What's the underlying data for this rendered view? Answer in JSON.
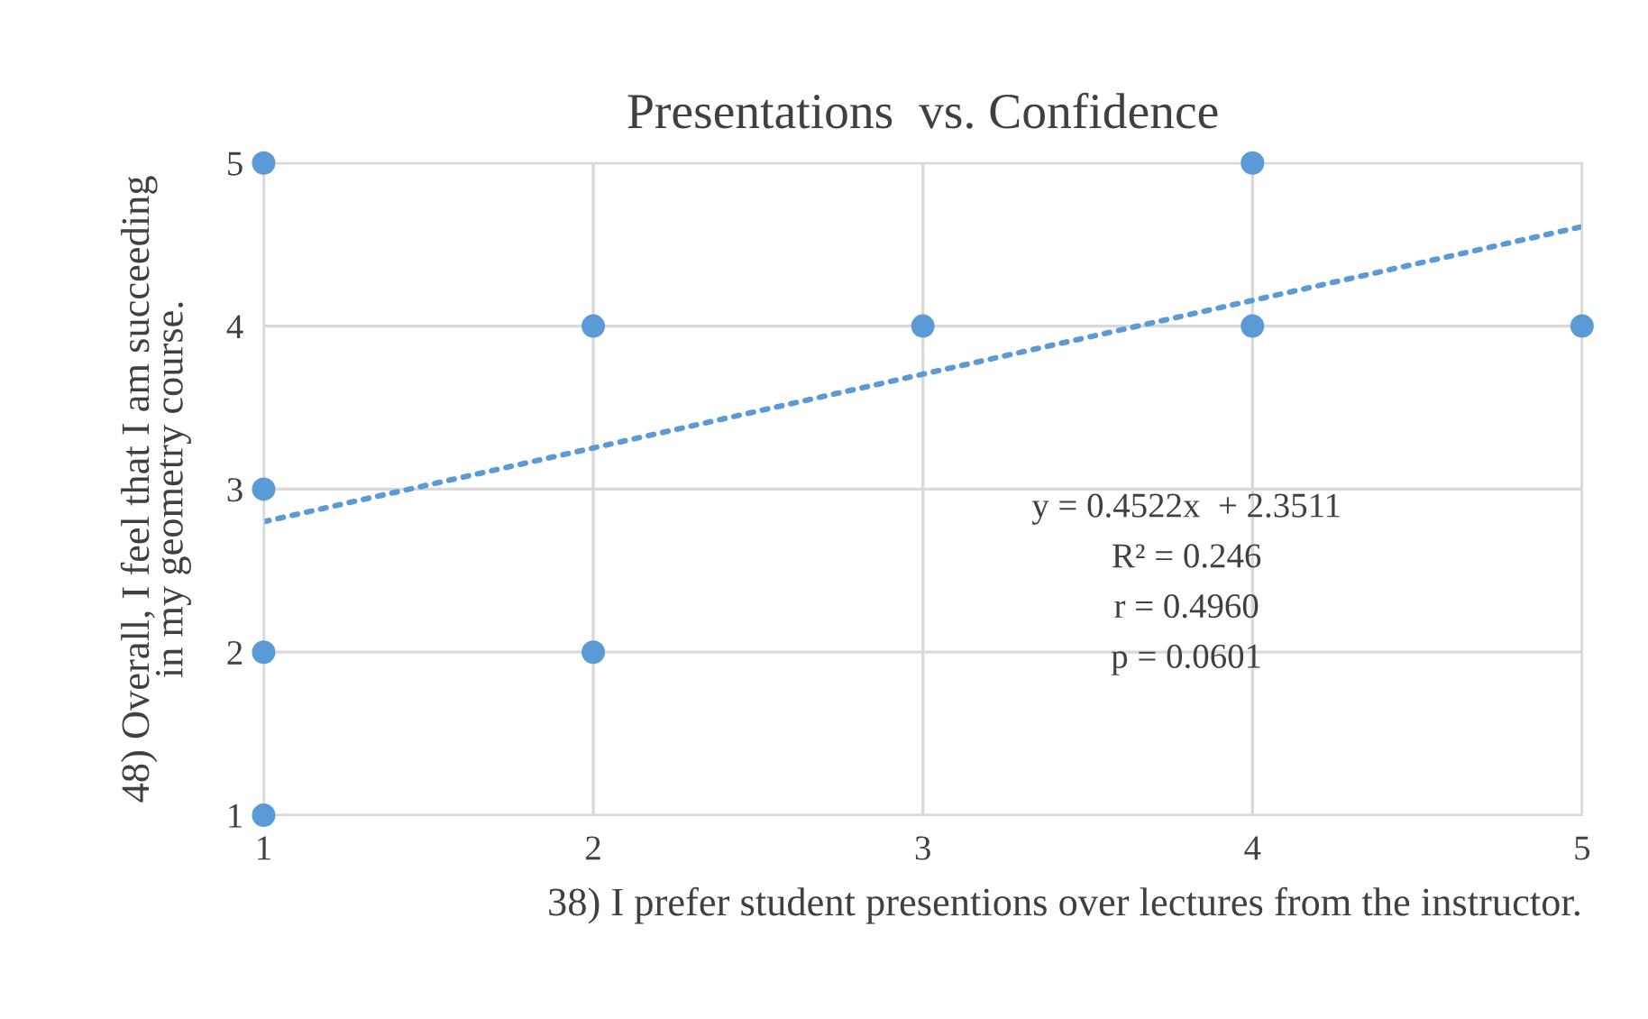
{
  "chart_data": {
    "type": "scatter",
    "title": "Presentations  vs. Confidence",
    "xlabel": "38) I prefer student presentions over lectures from the instructor.",
    "ylabel": "48) Overall, I feel that I am succeeding\nin my geometry course.",
    "x": [
      1,
      1,
      1,
      1,
      2,
      2,
      3,
      4,
      4,
      5
    ],
    "series": [
      {
        "color": "#5b9bd5",
        "marker": "circle",
        "values": [
          5,
          3,
          2,
          1,
          4,
          2,
          4,
          5,
          4,
          4
        ]
      },
      {
        "type": "line",
        "color": "#5b9bd5",
        "line_style": "dotted",
        "marker": "none",
        "x": [
          1,
          5
        ],
        "values": [
          2.8,
          4.61
        ]
      }
    ],
    "annotations": [
      "y = 0.4522x  + 2.3511",
      "R² = 0.246",
      "r = 0.4960",
      "p = 0.0601"
    ],
    "xlim": [
      1,
      5
    ],
    "ylim": [
      1,
      5
    ],
    "xticks": [
      1,
      2,
      3,
      4,
      5
    ],
    "yticks": [
      1,
      2,
      3,
      4,
      5
    ],
    "grid": true,
    "legend": false
  }
}
